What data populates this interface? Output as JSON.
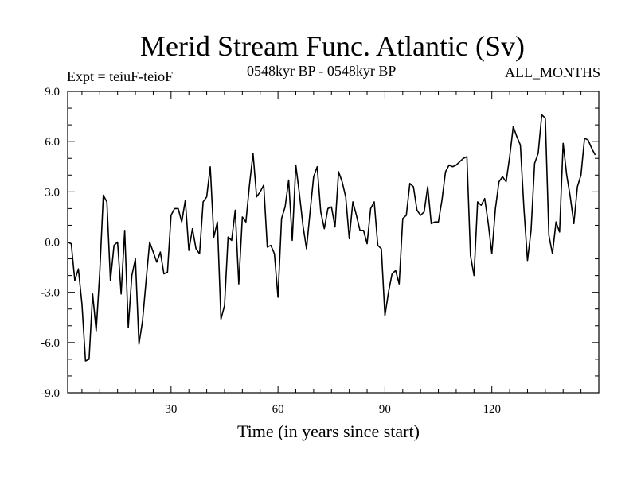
{
  "header": {
    "title": "Merid Stream Func. Atlantic (Sv)",
    "expt": "Expt = teiuF-teioF",
    "period": "0548kyr BP - 0548kyr BP",
    "months": "ALL_MONTHS"
  },
  "chart_data": {
    "type": "line",
    "title": "Merid Stream Func. Atlantic (Sv)",
    "xlabel": "Time (in years since start)",
    "ylabel": "",
    "xlim": [
      1,
      150
    ],
    "ylim": [
      -9,
      9
    ],
    "x_ticks": [
      30,
      60,
      90,
      120
    ],
    "x_tick_labels": [
      "30",
      "60",
      "90",
      "120"
    ],
    "y_ticks": [
      -9,
      -6,
      -3,
      0,
      3,
      6,
      9
    ],
    "y_tick_labels": [
      "-9.0",
      "-6.0",
      "-3.0",
      "0.0",
      "3.0",
      "6.0",
      "9.0"
    ],
    "reference_line": 0,
    "series": [
      {
        "name": "ALL_MONTHS",
        "x_start": 1,
        "x_step": 1,
        "values": [
          0.0,
          -0.1,
          -2.3,
          -1.6,
          -3.7,
          -7.1,
          -7.0,
          -3.1,
          -5.3,
          -1.8,
          2.8,
          2.4,
          -2.3,
          -0.2,
          0.0,
          -3.1,
          0.7,
          -5.1,
          -2.0,
          -1.0,
          -6.1,
          -4.7,
          -2.3,
          0.0,
          -0.6,
          -1.2,
          -0.6,
          -1.9,
          -1.8,
          1.6,
          2.0,
          2.0,
          1.2,
          2.5,
          -0.5,
          0.8,
          -0.4,
          -0.7,
          2.4,
          2.7,
          4.5,
          0.3,
          1.2,
          -4.6,
          -3.8,
          0.3,
          0.1,
          1.9,
          -2.5,
          1.5,
          1.2,
          3.4,
          5.3,
          2.7,
          3.0,
          3.4,
          -0.3,
          -0.2,
          -0.7,
          -3.3,
          1.4,
          2.1,
          3.7,
          0.1,
          4.6,
          2.9,
          1.0,
          -0.4,
          1.8,
          3.9,
          4.5,
          1.8,
          0.8,
          2.0,
          2.1,
          0.9,
          4.2,
          3.6,
          2.7,
          0.2,
          2.4,
          1.6,
          0.7,
          0.7,
          -0.1,
          2.0,
          2.4,
          -0.2,
          -0.4,
          -4.4,
          -3.0,
          -1.9,
          -1.7,
          -2.5,
          1.4,
          1.6,
          3.5,
          3.3,
          1.9,
          1.6,
          1.8,
          3.3,
          1.1,
          1.2,
          1.2,
          2.5,
          4.2,
          4.6,
          4.5,
          4.6,
          4.8,
          5.0,
          5.1,
          -0.8,
          -2.0,
          2.4,
          2.2,
          2.6,
          1.1,
          -0.7,
          2.0,
          3.6,
          3.9,
          3.6,
          5.1,
          6.9,
          6.3,
          5.8,
          2.0,
          -1.1,
          0.7,
          4.7,
          5.3,
          7.6,
          7.4,
          0.4,
          -0.7,
          1.2,
          0.6,
          5.9,
          4.0,
          2.7,
          1.1,
          3.3,
          4.0,
          6.2,
          6.1,
          5.6,
          5.2
        ]
      }
    ]
  }
}
